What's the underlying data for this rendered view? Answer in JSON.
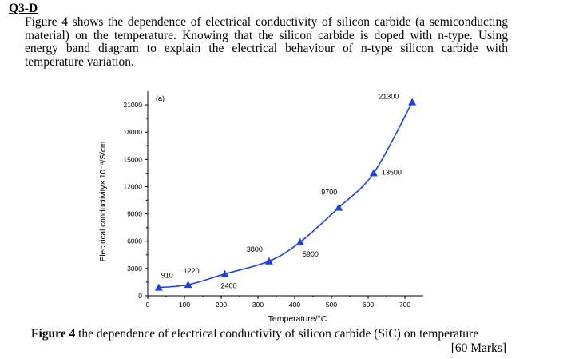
{
  "question": {
    "label": "Q3-D",
    "lines": [
      "Figure 4 shows the dependence of electrical conductivity of silicon carbide (a semiconducting",
      "material) on the temperature. Knowing that the silicon carbide is doped with n-type. Using",
      "energy band diagram to explain the electrical behaviour of n-type silicon carbide with",
      "temperature variation."
    ]
  },
  "caption": {
    "label": "Figure 4",
    "text": " the dependence of electrical conductivity of silicon carbide (SiC) on temperature"
  },
  "marks": "[60 Marks]",
  "chart_data": {
    "type": "line",
    "panel_label": "(a)",
    "xlabel": "Temperature/°C",
    "ylabel": "Electrical conductivity× 10⁻⁴/S/cm",
    "xlim": [
      0,
      750
    ],
    "ylim": [
      0,
      22500
    ],
    "xticks": [
      0,
      100,
      200,
      300,
      400,
      500,
      600,
      700
    ],
    "yticks": [
      0,
      3000,
      6000,
      9000,
      12000,
      15000,
      18000,
      21000
    ],
    "marker": "triangle",
    "color": "#1f3fe0",
    "points": [
      {
        "x": 30,
        "y": 910,
        "label": "910"
      },
      {
        "x": 110,
        "y": 1220,
        "label": "1220"
      },
      {
        "x": 210,
        "y": 2400,
        "label": "2400"
      },
      {
        "x": 330,
        "y": 3800,
        "label": "3800"
      },
      {
        "x": 415,
        "y": 5900,
        "label": "5900"
      },
      {
        "x": 520,
        "y": 9700,
        "label": "9700"
      },
      {
        "x": 615,
        "y": 13500,
        "label": "13500"
      },
      {
        "x": 720,
        "y": 21300,
        "label": "21300"
      }
    ]
  }
}
